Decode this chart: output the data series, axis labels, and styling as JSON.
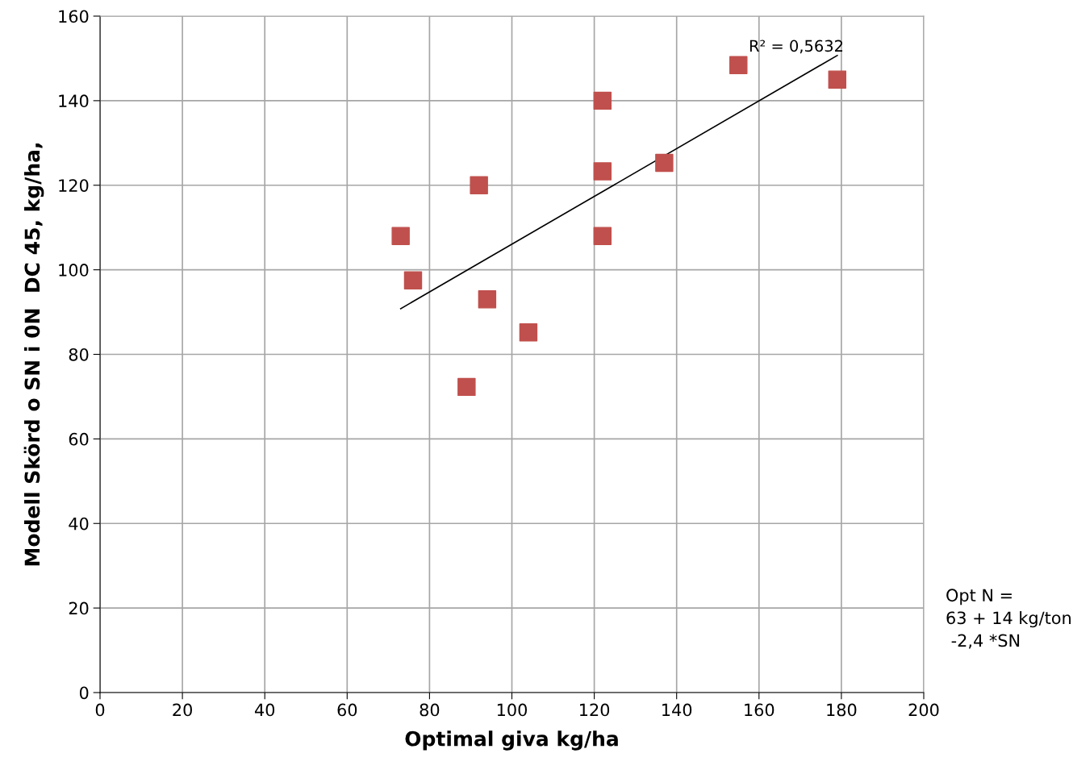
{
  "chart_data": {
    "type": "scatter",
    "xlabel": "Optimal giva kg/ha",
    "ylabel": "Modell Skörd o SN i 0N  DC 45, kg/ha,",
    "series": [
      {
        "color": "#c0504d",
        "marker": "square",
        "x": [
          73,
          76,
          92,
          89,
          94,
          104,
          122,
          122,
          122,
          137,
          155,
          179
        ],
        "values": [
          108,
          97.5,
          120,
          72.3,
          93,
          85.2,
          140,
          123.3,
          108,
          125.3,
          148.4,
          145
        ]
      },
      {
        "type": "line",
        "color": "#000000",
        "marker": "none",
        "x": [
          73,
          179
        ],
        "values": [
          90.8,
          150.7
        ]
      }
    ],
    "annotations": [
      "R² = 0,5632",
      "Opt N =\n63 + 14 kg/ton\n -2,4 *SN"
    ],
    "xlim": [
      0,
      200
    ],
    "xticks": [
      0,
      20,
      40,
      60,
      80,
      100,
      120,
      140,
      160,
      180,
      200
    ],
    "ylim": [
      0,
      160
    ],
    "yticks": [
      0,
      20,
      40,
      60,
      80,
      100,
      120,
      140,
      160
    ],
    "grid": true,
    "legend": false
  }
}
